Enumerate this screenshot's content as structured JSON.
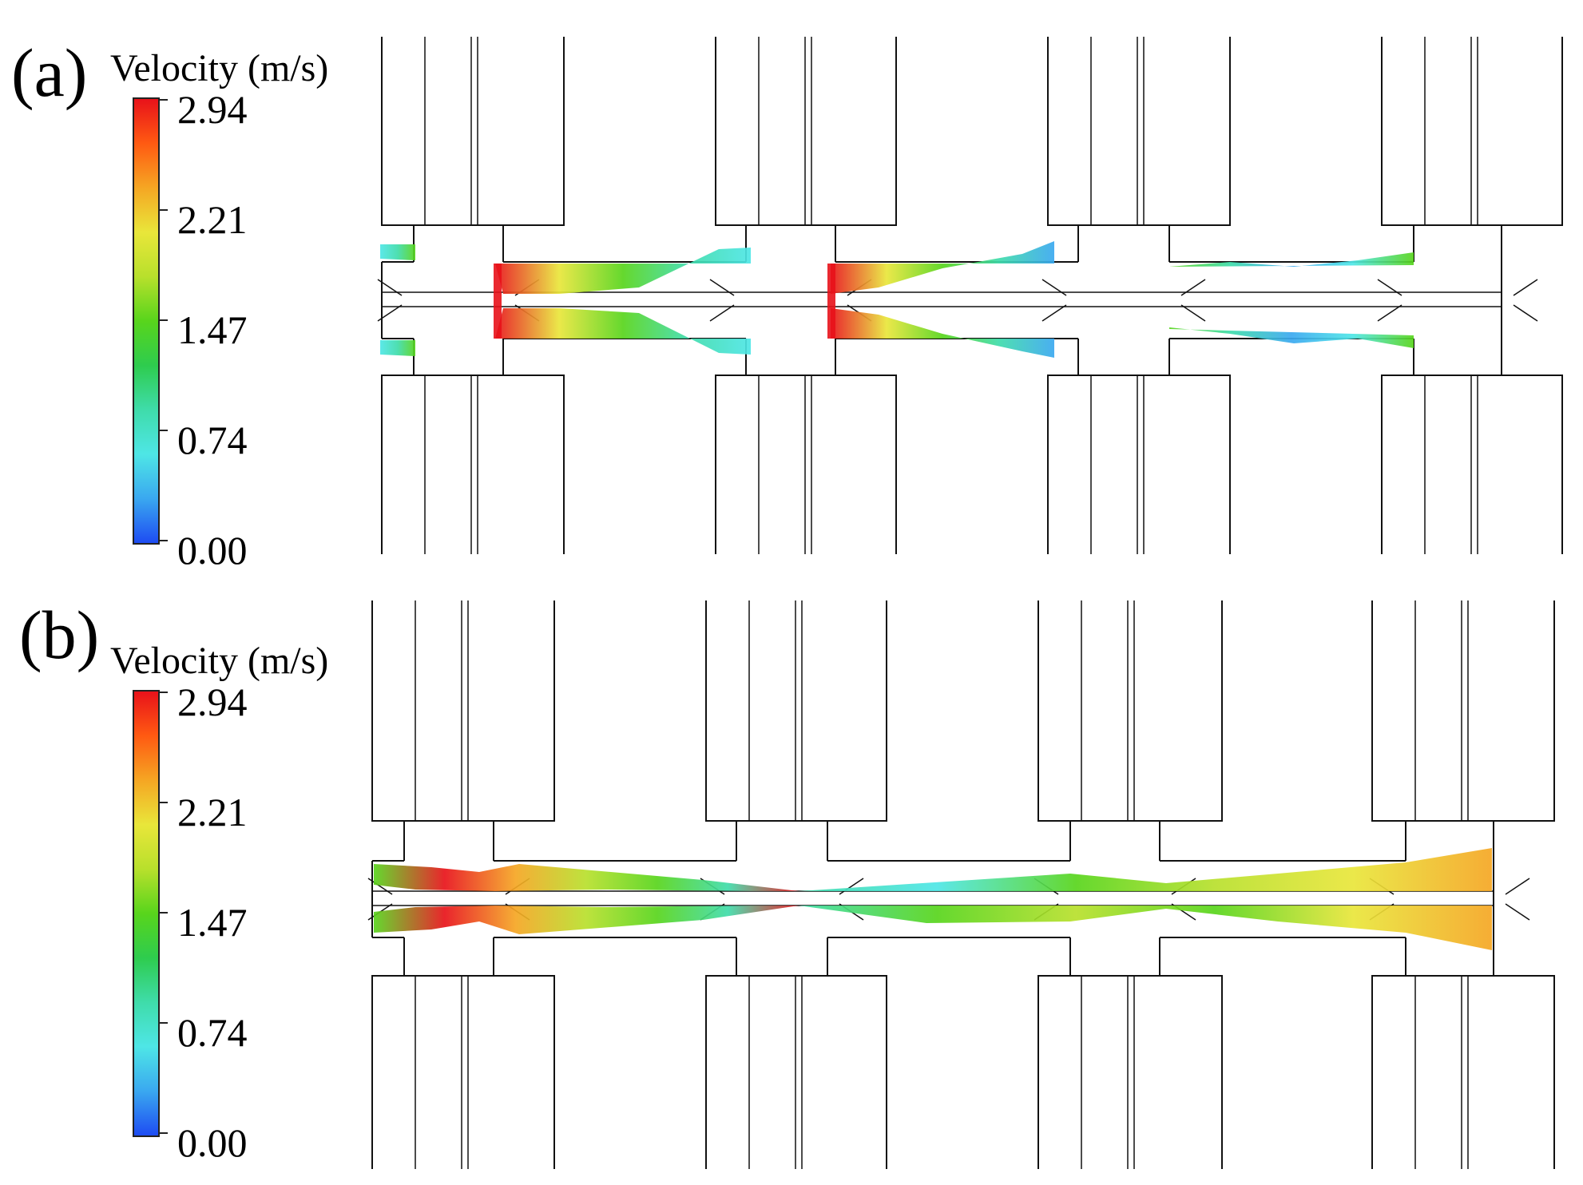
{
  "panels": [
    {
      "label": "(a)",
      "legend": {
        "title": "Velocity (m/s)",
        "ticks": [
          "2.94",
          "2.21",
          "1.47",
          "0.74",
          "0.00"
        ],
        "colormap": [
          "#e8121a",
          "#ff5a12",
          "#f5a623",
          "#e9e63a",
          "#b8e02c",
          "#58d51c",
          "#2ecc4e",
          "#3fdcaa",
          "#4ee6e6",
          "#3aa8f0",
          "#1e4cf2"
        ]
      }
    },
    {
      "label": "(b)",
      "legend": {
        "title": "Velocity (m/s)",
        "ticks": [
          "2.94",
          "2.21",
          "1.47",
          "0.74",
          "0.00"
        ],
        "colormap": [
          "#e8121a",
          "#ff5a12",
          "#f5a623",
          "#e9e63a",
          "#b8e02c",
          "#58d51c",
          "#2ecc4e",
          "#3fdcaa",
          "#4ee6e6",
          "#3aa8f0",
          "#1e4cf2"
        ]
      }
    }
  ]
}
